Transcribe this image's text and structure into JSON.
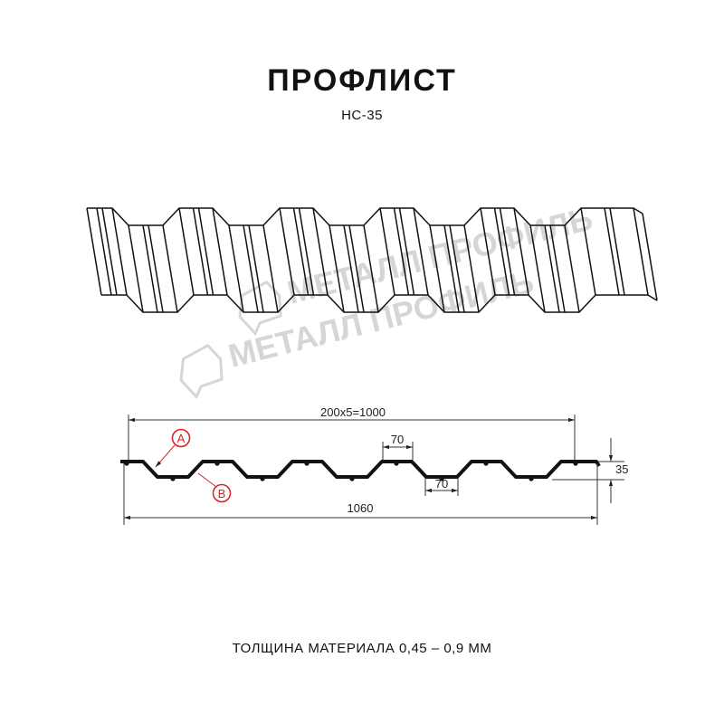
{
  "header": {
    "title": "ПРОФЛИСТ",
    "model": "НС-35"
  },
  "watermark": {
    "text": "МЕТАЛЛ ПРОФИЛЬ"
  },
  "drawing": {
    "dimensions": {
      "working_width": "200x5=1000",
      "total_width": "1060",
      "crest_width": "70",
      "trough_width": "70",
      "height": "35"
    },
    "labels": {
      "a": "A",
      "b": "B"
    }
  },
  "footer": {
    "thickness": "ТОЛЩИНА МАТЕРИАЛА 0,45 – 0,9 ММ"
  },
  "colors": {
    "line": "#111111",
    "label": "#d42020",
    "watermark": "#d6d6d6"
  }
}
